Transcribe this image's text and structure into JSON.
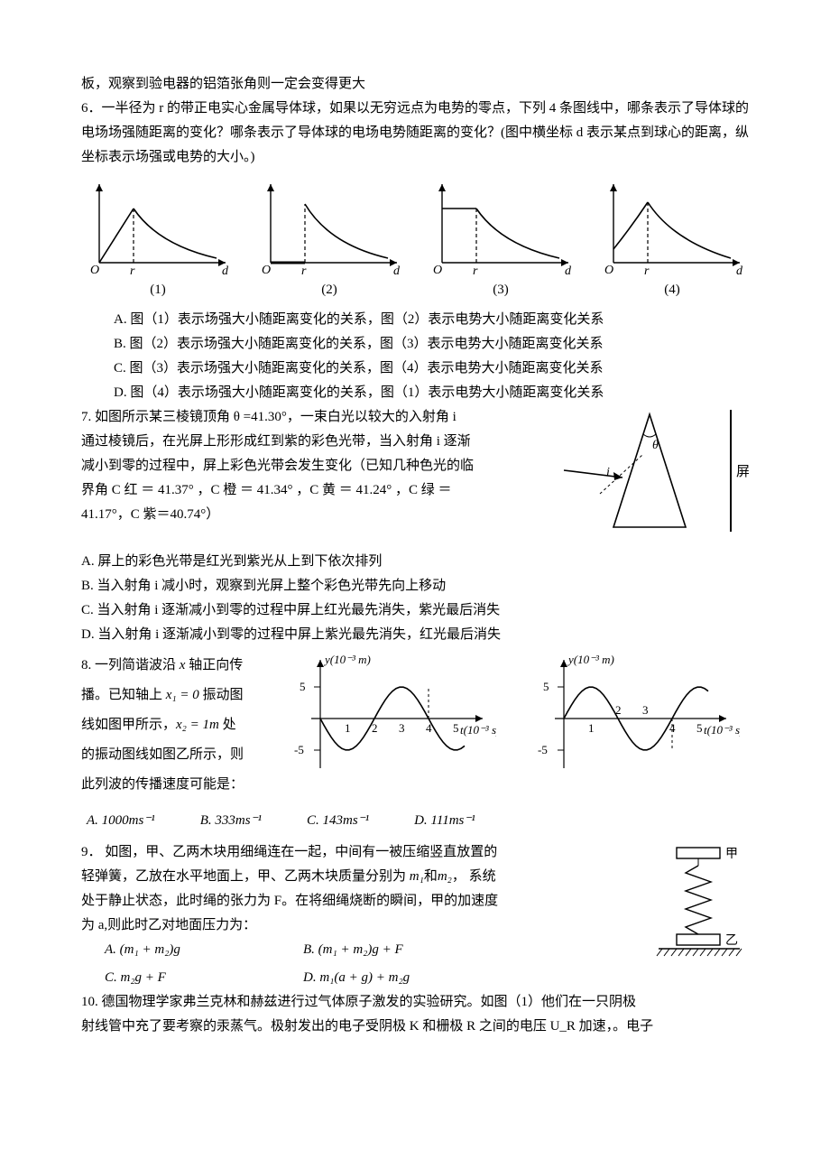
{
  "preamble": "板，观察到验电器的铝箔张角则一定会变得更大",
  "q6": {
    "stem": "6．一半径为 r 的带正电实心金属导体球，如果以无穷远点为电势的零点，下列 4 条图线中，哪条表示了导体球的电场场强随距离的变化？哪条表示了导体球的电场电势随距离的变化？(图中横坐标 d 表示某点到球心的距离，纵坐标表示场强或电势的大小。)",
    "captions": [
      "(1)",
      "(2)",
      "(3)",
      "(4)"
    ],
    "axis_O": "O",
    "axis_r": "r",
    "axis_d": "d",
    "opts": {
      "A": "A.  图（1）表示场强大小随距离变化的关系，图（2）表示电势大小随距离变化关系",
      "B": "B.  图（2）表示场强大小随距离变化的关系，图（3）表示电势大小随距离变化关系",
      "C": "C.  图（3）表示场强大小随距离变化的关系，图（4）表示电势大小随距离变化关系",
      "D": "D.  图（4）表示场强大小随距离变化的关系，图（1）表示电势大小随距离变化关系"
    },
    "graph": {
      "stroke": "#000000",
      "dash": "4 3",
      "line_width": 1.4
    }
  },
  "q7": {
    "line1": "7. 如图所示某三棱镜顶角 θ =41.30°，一束白光以较大的入射角 i",
    "line2": "通过棱镜后，在光屏上形形成红到紫的彩色光带，当入射角 i 逐渐",
    "line3": "减小到零的过程中，屏上彩色光带会发生变化（已知几种色光的临",
    "line4": "界角 C 红 ＝ 41.37° ，C 橙 ＝ 41.34° ，C 黄 ＝ 41.24° ，C 绿 ＝",
    "line5": "41.17°，C 紫＝40.74°）",
    "A": "A.    屏上的彩色光带是红光到紫光从上到下依次排列",
    "B": "B.    当入射角 i 减小时，观察到光屏上整个彩色光带先向上移动",
    "C": "C.    当入射角 i 逐渐减小到零的过程中屏上红光最先消失，紫光最后消失",
    "D": "D.    当入射角 i 逐渐减小到零的过程中屏上紫光最先消失，红光最后消失",
    "fig": {
      "theta": "θ",
      "i": "i",
      "screen": "屏"
    }
  },
  "q8": {
    "l1a": "8.  一列简谐波沿 ",
    "l1b": " 轴正向传",
    "l2a": "播。已知轴上 ",
    "l2b": " 振动图",
    "l3a": "线如图甲所示，",
    "l3b": " 处",
    "l4": "的振动图线如图乙所示，则",
    "l5": "此列波的传播速度可能是：",
    "x_var": "x",
    "x1": "x₁ = 0",
    "x2": "x₂ = 1m",
    "ylab": "y(10⁻³ m)",
    "xlab": "t(10⁻³ s)",
    "yticks": [
      "5",
      "-5"
    ],
    "xticks": [
      "1",
      "2",
      "3",
      "4",
      "5"
    ],
    "opts": {
      "A": "A.  1000ms⁻¹",
      "B": "B.  333ms⁻¹",
      "C": "C.  143ms⁻¹",
      "D": "D.  111ms⁻¹"
    },
    "stroke": "#000000"
  },
  "q9": {
    "l1": "9．  如图，甲、乙两木块用细绳连在一起，中间有一被压缩竖直放置的",
    "l2a": "轻弹簧，乙放在水平地面上，甲、乙两木块质量分别为 ",
    "l2b": "和",
    "l2c": "， 系统",
    "l3": "处于静止状态，此时绳的张力为 F。在将细绳烧断的瞬间，甲的加速度",
    "l4": "为 a,则此时乙对地面压力为：",
    "m1": "m₁",
    "m2": "m₂",
    "opts": {
      "A": "A. (m₁ + m₂)g",
      "B": "B.  (m₁ + m₂)g + F",
      "C": "C.  m₂g + F",
      "D": "D.  m₁(a + g) + m₂g"
    },
    "fig": {
      "jia": "甲",
      "yi": "乙"
    }
  },
  "q10": {
    "l1": "10.  德国物理学家弗兰克林和赫兹进行过气体原子激发的实验研究。如图（1）他们在一只阴极",
    "l2": "射线管中充了要考察的汞蒸气。极射发出的电子受阴极 K 和栅极 R 之间的电压 U_R 加速，。电子"
  }
}
